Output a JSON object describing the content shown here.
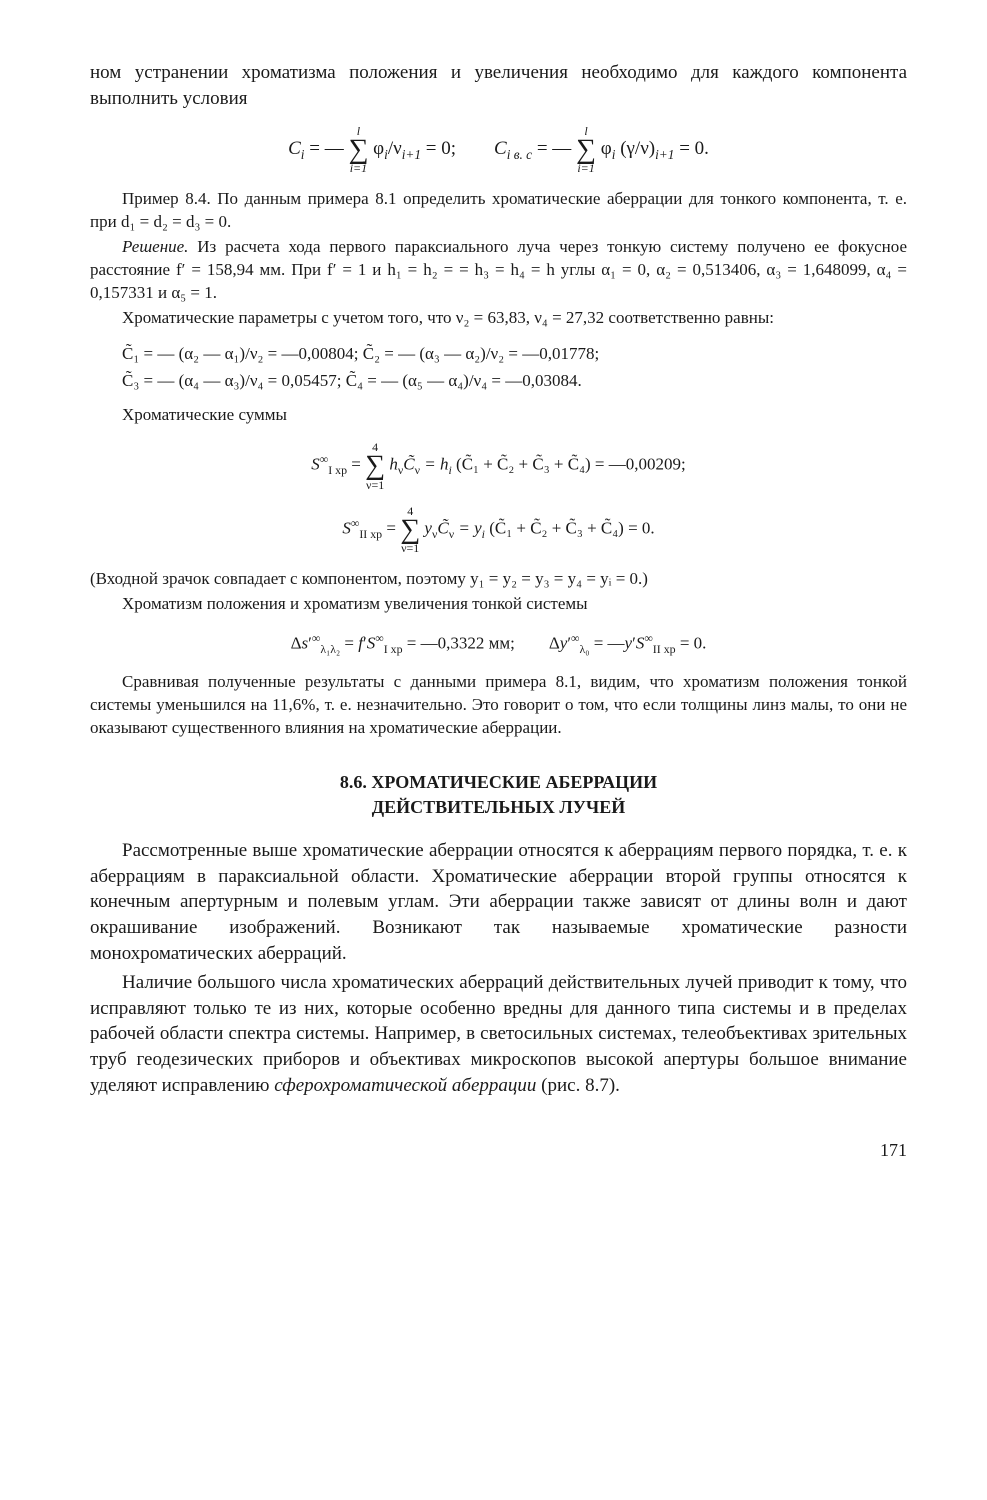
{
  "intro": {
    "p1": "ном устранении хроматизма положения и увеличения необходимо для каждого компонента выполнить условия",
    "formula1_left": "C",
    "formula1_left_sub": "i",
    "formula1_eq1": " = — ",
    "formula1_sumtop": "l",
    "formula1_sumbot": "i=1",
    "formula1_body": " φ",
    "formula1_body_sub": "i",
    "formula1_denom": "/ν",
    "formula1_denom_sub": "i+1",
    "formula1_end": " = 0;",
    "formula1_right": "C",
    "formula1_right_sub": "i в. с",
    "formula1_eq2": " = — ",
    "formula1_sumtop2": "l",
    "formula1_sumbot2": "i=1",
    "formula1_body2": " φ",
    "formula1_body2_sub": "i",
    "formula1_paren": " (γ/ν)",
    "formula1_paren_sub": "i+1",
    "formula1_end2": " = 0."
  },
  "example": {
    "header": "Пример 8.4. По данным примера 8.1 определить хроматические аберрации для тонкого компонента, т. е. при d₁ = d₂ = d₃ = 0.",
    "solution_label": "Решение.",
    "solution_text": " Из расчета хода первого параксиального луча через тонкую систему получено ее фокусное расстояние f′ = 158,94 мм. При f′ = 1 и h₁ = h₂ = = h₃ = h₄ = h   углы   α₁ = 0,   α₂ = 0,513406,   α₃ = 1,648099,   α₄ = 0,157331 и α₅ = 1.",
    "params": "Хроматические параметры с учетом того, что ν₂ = 63,83, ν₄ = 27,32 соответственно равны:",
    "c_line1": "C̃₁ = — (α₂ — α₁)/ν₂ = —0,00804;          C̃₂ = — (α₃ — α₂)/ν₂ = —0,01778;",
    "c_line2": "C̃₃ = — (α₄ — α₃)/ν₄ = 0,05457;          C̃₄ = — (α₅ — α₄)/ν₄ = —0,03084.",
    "sums_label": "Хроматические суммы",
    "s1_lhs": "S",
    "s1_sup": "∞",
    "s1_sub": "I хр",
    "s1_eq": " = ",
    "s1_sumtop": "4",
    "s1_sumbot": "ν=1",
    "s1_body": " h",
    "s1_body_sub": "ν",
    "s1_ctilde": "C̃",
    "s1_ctilde_sub": "ν",
    "s1_rhs": " = h",
    "s1_rhs_sub": "i",
    "s1_paren": " (C̃₁ + C̃₂ + C̃₃ + C̃₄) = —0,00209;",
    "s2_lhs": "S",
    "s2_sup": "∞",
    "s2_sub": "II хр",
    "s2_eq": " = ",
    "s2_sumtop": "4",
    "s2_sumbot": "ν=1",
    "s2_body": " y",
    "s2_body_sub": "ν",
    "s2_ctilde": "C̃",
    "s2_ctilde_sub": "ν",
    "s2_rhs": " = y",
    "s2_rhs_sub": "i",
    "s2_paren": " (C̃₁ + C̃₂ + C̃₃ + C̃₄) = 0.",
    "paren_note": "(Входной зрачок совпадает с компонентом, поэтому y₁ = y₂ = y₃ = y₄ = yᵢ = 0.)",
    "chrom_label": "Хроматизм положения и хроматизм увеличения тонкой системы",
    "delta_formula": "Δs′∞λ₁λ₂ = f′S∞I хр = —0,3322 мм;          Δy′∞λ₀ = —y′S∞II хр = 0.",
    "compare": "Сравнивая полученные результаты с данными примера 8.1, видим, что хроматизм положения тонкой системы уменьшился на 11,6%, т. е. незначительно. Это говорит о том, что если толщины линз малы, то они не оказывают существенного влияния на хроматические аберрации."
  },
  "section": {
    "title_num": "8.6. ХРОМАТИЧЕСКИЕ АБЕРРАЦИИ",
    "title_line2": "ДЕЙСТВИТЕЛЬНЫХ ЛУЧЕЙ",
    "p1": "Рассмотренные выше хроматические аберрации относятся к аберрациям первого порядка, т. е. к аберрациям в параксиальной области. Хроматические аберрации второй группы относятся к конечным апертурным и полевым углам. Эти аберрации также зависят от длины волн и дают окрашивание изображений. Возникают так называемые хроматические разности монохроматических аберраций.",
    "p2_a": "Наличие большого числа хроматических аберраций действительных лучей приводит к тому, что исправляют только те из них, которые особенно вредны для данного типа системы и в пределах рабочей области спектра системы. Например, в светосильных системах, телеобъективах зрительных труб геодезических приборов и объективах микроскопов высокой апертуры большое внимание уделяют исправлению ",
    "p2_italic": "сферохроматической аберрации",
    "p2_b": " (рис. 8.7)."
  },
  "page_number": "171"
}
